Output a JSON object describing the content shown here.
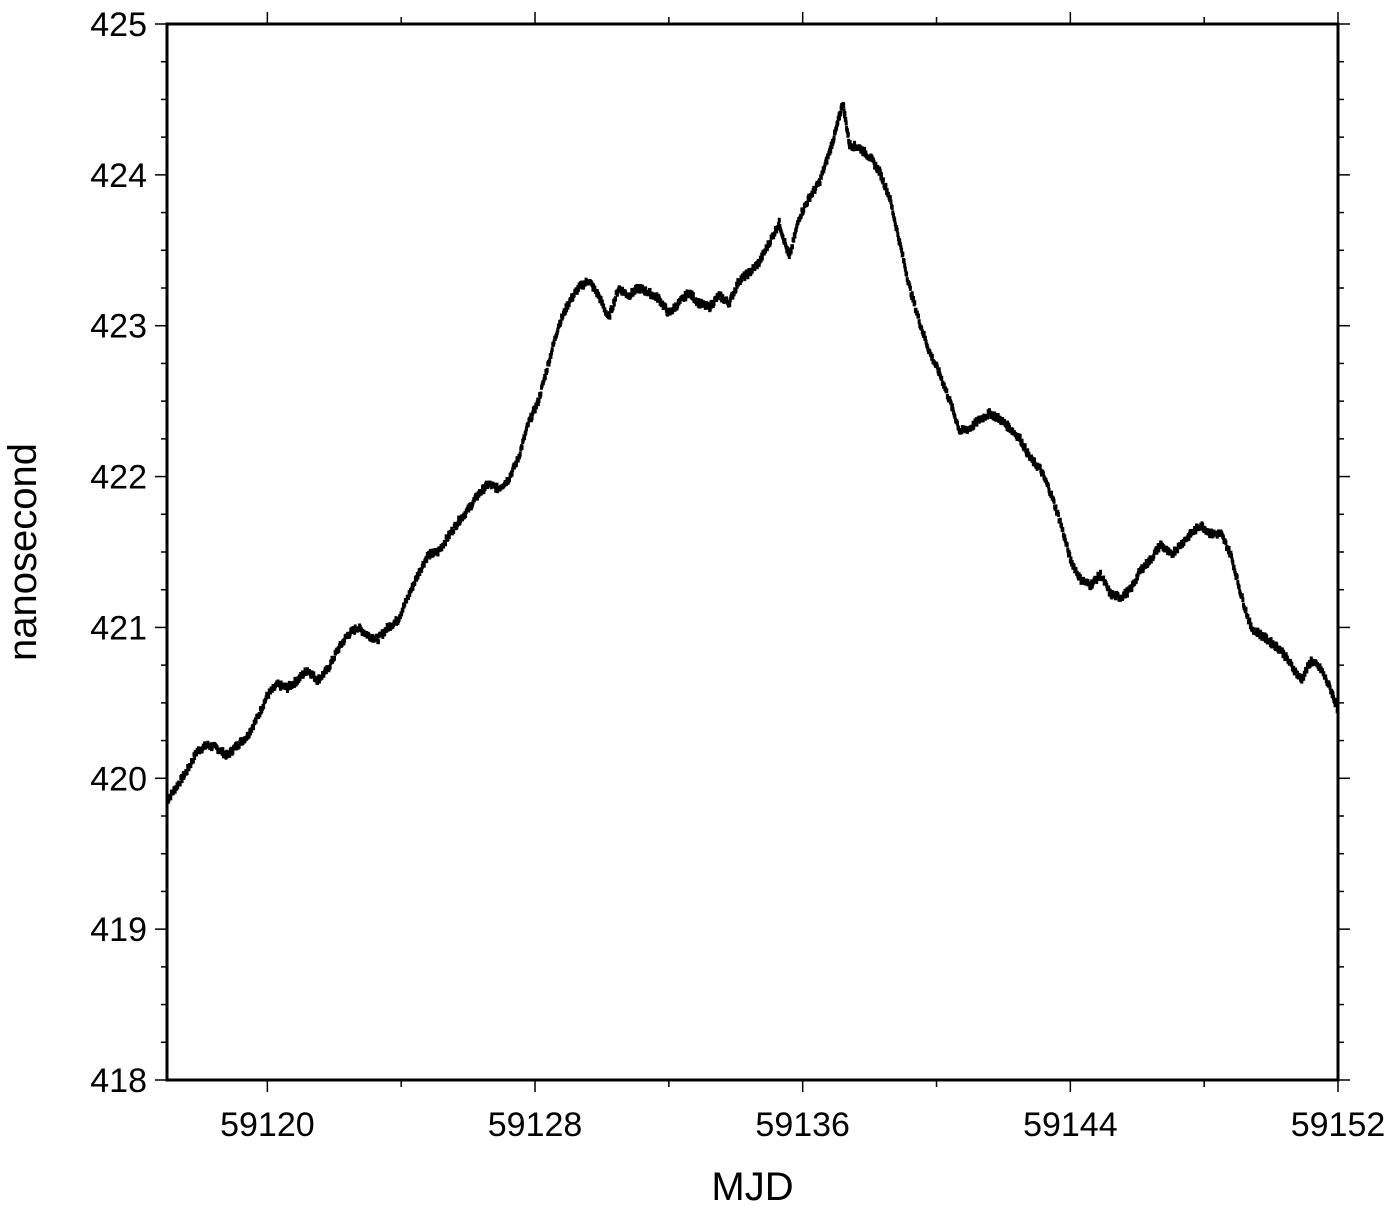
{
  "chart_data": {
    "type": "scatter",
    "title": "",
    "xlabel": "MJD",
    "ylabel": "nanosecond",
    "xlim": [
      59117,
      59152
    ],
    "ylim": [
      418,
      425
    ],
    "xticks": [
      59120,
      59128,
      59136,
      59144,
      59152
    ],
    "yticks": [
      418,
      419,
      420,
      421,
      422,
      423,
      424,
      425
    ],
    "grid": false,
    "legend": "none",
    "marker_color": "#000000",
    "series": [
      {
        "points": [
          [
            59117.0,
            419.85
          ],
          [
            59117.3,
            419.95
          ],
          [
            59117.6,
            420.05
          ],
          [
            59117.9,
            420.18
          ],
          [
            59118.2,
            420.22
          ],
          [
            59118.5,
            420.2
          ],
          [
            59118.8,
            420.15
          ],
          [
            59119.1,
            420.22
          ],
          [
            59119.4,
            420.28
          ],
          [
            59119.7,
            420.4
          ],
          [
            59120.0,
            420.55
          ],
          [
            59120.3,
            420.62
          ],
          [
            59120.6,
            420.6
          ],
          [
            59120.9,
            420.65
          ],
          [
            59121.2,
            420.72
          ],
          [
            59121.5,
            420.65
          ],
          [
            59121.8,
            420.72
          ],
          [
            59122.1,
            420.85
          ],
          [
            59122.4,
            420.95
          ],
          [
            59122.7,
            421.0
          ],
          [
            59123.0,
            420.95
          ],
          [
            59123.3,
            420.92
          ],
          [
            59123.6,
            421.0
          ],
          [
            59123.9,
            421.05
          ],
          [
            59124.2,
            421.2
          ],
          [
            59124.5,
            421.35
          ],
          [
            59124.8,
            421.48
          ],
          [
            59125.1,
            421.5
          ],
          [
            59125.4,
            421.6
          ],
          [
            59125.7,
            421.7
          ],
          [
            59126.0,
            421.78
          ],
          [
            59126.3,
            421.88
          ],
          [
            59126.6,
            421.95
          ],
          [
            59126.9,
            421.92
          ],
          [
            59127.2,
            421.98
          ],
          [
            59127.5,
            422.12
          ],
          [
            59127.8,
            422.35
          ],
          [
            59128.1,
            422.5
          ],
          [
            59128.4,
            422.75
          ],
          [
            59128.7,
            423.0
          ],
          [
            59129.0,
            423.15
          ],
          [
            59129.3,
            423.25
          ],
          [
            59129.6,
            423.3
          ],
          [
            59129.9,
            423.2
          ],
          [
            59130.2,
            423.05
          ],
          [
            59130.5,
            423.25
          ],
          [
            59130.8,
            423.2
          ],
          [
            59131.1,
            423.25
          ],
          [
            59131.4,
            423.22
          ],
          [
            59131.7,
            423.18
          ],
          [
            59132.0,
            423.08
          ],
          [
            59132.3,
            423.15
          ],
          [
            59132.6,
            423.22
          ],
          [
            59132.9,
            423.15
          ],
          [
            59133.2,
            423.12
          ],
          [
            59133.5,
            423.2
          ],
          [
            59133.8,
            423.15
          ],
          [
            59134.1,
            423.3
          ],
          [
            59134.4,
            423.35
          ],
          [
            59134.7,
            423.42
          ],
          [
            59135.0,
            423.55
          ],
          [
            59135.3,
            423.68
          ],
          [
            59135.6,
            423.45
          ],
          [
            59135.9,
            423.72
          ],
          [
            59136.2,
            423.85
          ],
          [
            59136.5,
            423.95
          ],
          [
            59136.8,
            424.15
          ],
          [
            59137.0,
            424.3
          ],
          [
            59137.2,
            424.48
          ],
          [
            59137.4,
            424.2
          ],
          [
            59137.7,
            424.18
          ],
          [
            59138.0,
            424.12
          ],
          [
            59138.3,
            424.02
          ],
          [
            59138.6,
            423.85
          ],
          [
            59138.9,
            423.55
          ],
          [
            59139.2,
            423.25
          ],
          [
            59139.5,
            423.02
          ],
          [
            59139.8,
            422.82
          ],
          [
            59140.1,
            422.68
          ],
          [
            59140.4,
            422.5
          ],
          [
            59140.7,
            422.3
          ],
          [
            59141.0,
            422.32
          ],
          [
            59141.3,
            422.38
          ],
          [
            59141.6,
            422.42
          ],
          [
            59141.9,
            422.38
          ],
          [
            59142.2,
            422.32
          ],
          [
            59142.5,
            422.25
          ],
          [
            59142.8,
            422.12
          ],
          [
            59143.1,
            422.05
          ],
          [
            59143.4,
            421.9
          ],
          [
            59143.7,
            421.7
          ],
          [
            59144.0,
            421.45
          ],
          [
            59144.3,
            421.32
          ],
          [
            59144.6,
            421.28
          ],
          [
            59144.9,
            421.35
          ],
          [
            59145.2,
            421.22
          ],
          [
            59145.5,
            421.2
          ],
          [
            59145.8,
            421.25
          ],
          [
            59146.1,
            421.38
          ],
          [
            59146.4,
            421.45
          ],
          [
            59146.7,
            421.55
          ],
          [
            59147.0,
            421.48
          ],
          [
            59147.3,
            421.55
          ],
          [
            59147.6,
            421.62
          ],
          [
            59147.9,
            421.68
          ],
          [
            59148.2,
            421.62
          ],
          [
            59148.5,
            421.62
          ],
          [
            59148.8,
            421.48
          ],
          [
            59149.1,
            421.22
          ],
          [
            59149.4,
            421.0
          ],
          [
            59149.7,
            420.95
          ],
          [
            59150.0,
            420.9
          ],
          [
            59150.3,
            420.85
          ],
          [
            59150.6,
            420.75
          ],
          [
            59150.9,
            420.65
          ],
          [
            59151.2,
            420.78
          ],
          [
            59151.5,
            420.72
          ],
          [
            59151.8,
            420.58
          ],
          [
            59152.0,
            420.45
          ]
        ]
      }
    ]
  }
}
